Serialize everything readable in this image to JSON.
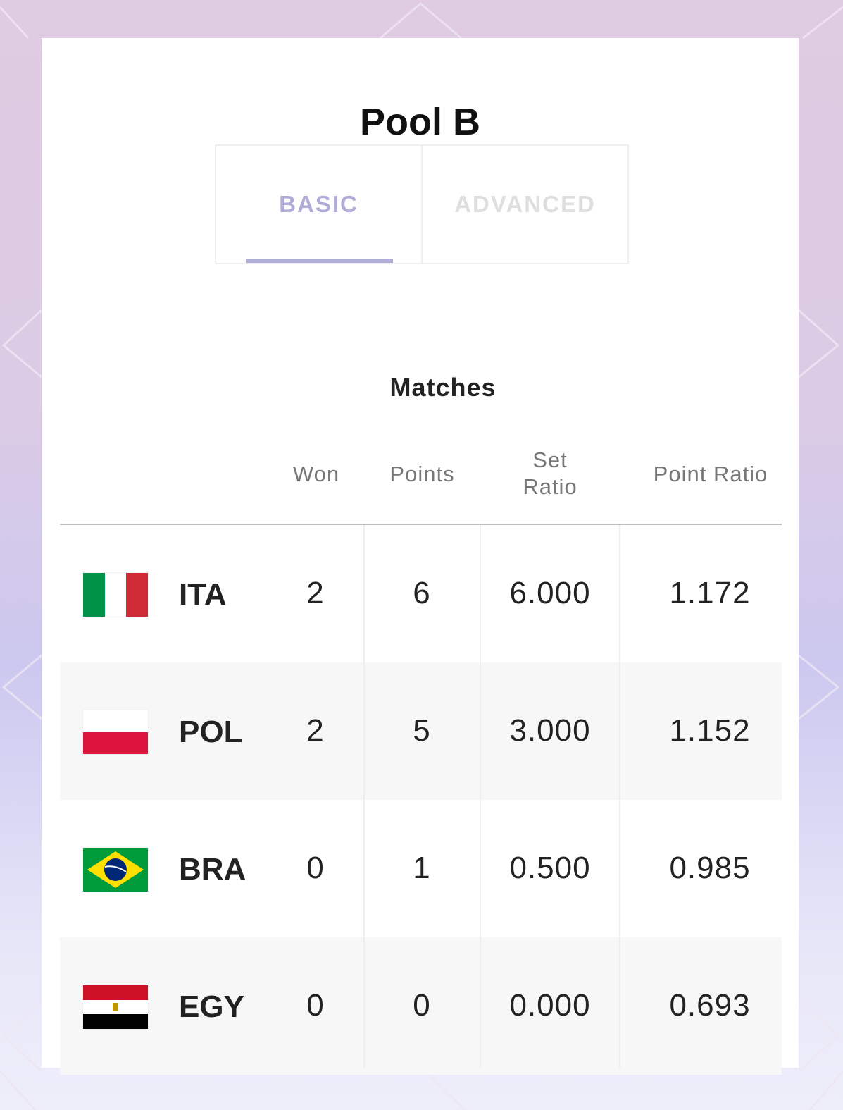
{
  "title": "Pool B",
  "tabs": [
    {
      "label": "BASIC",
      "active": true
    },
    {
      "label": "ADVANCED",
      "active": false
    }
  ],
  "group_header": "Matches",
  "columns": [
    "Won",
    "Points",
    "Set Ratio",
    "Point Ratio"
  ],
  "rows": [
    {
      "code": "ITA",
      "flag": "italy-flag",
      "won": "2",
      "points": "6",
      "set_ratio": "6.000",
      "point_ratio": "1.172"
    },
    {
      "code": "POL",
      "flag": "poland-flag",
      "won": "2",
      "points": "5",
      "set_ratio": "3.000",
      "point_ratio": "1.152"
    },
    {
      "code": "BRA",
      "flag": "brazil-flag",
      "won": "0",
      "points": "1",
      "set_ratio": "0.500",
      "point_ratio": "0.985"
    },
    {
      "code": "EGY",
      "flag": "egypt-flag",
      "won": "0",
      "points": "0",
      "set_ratio": "0.000",
      "point_ratio": "0.693"
    }
  ],
  "colors": {
    "accent": "#b0acd8",
    "inactive_tab": "#dedede",
    "alt_row": "#f7f7f7"
  }
}
